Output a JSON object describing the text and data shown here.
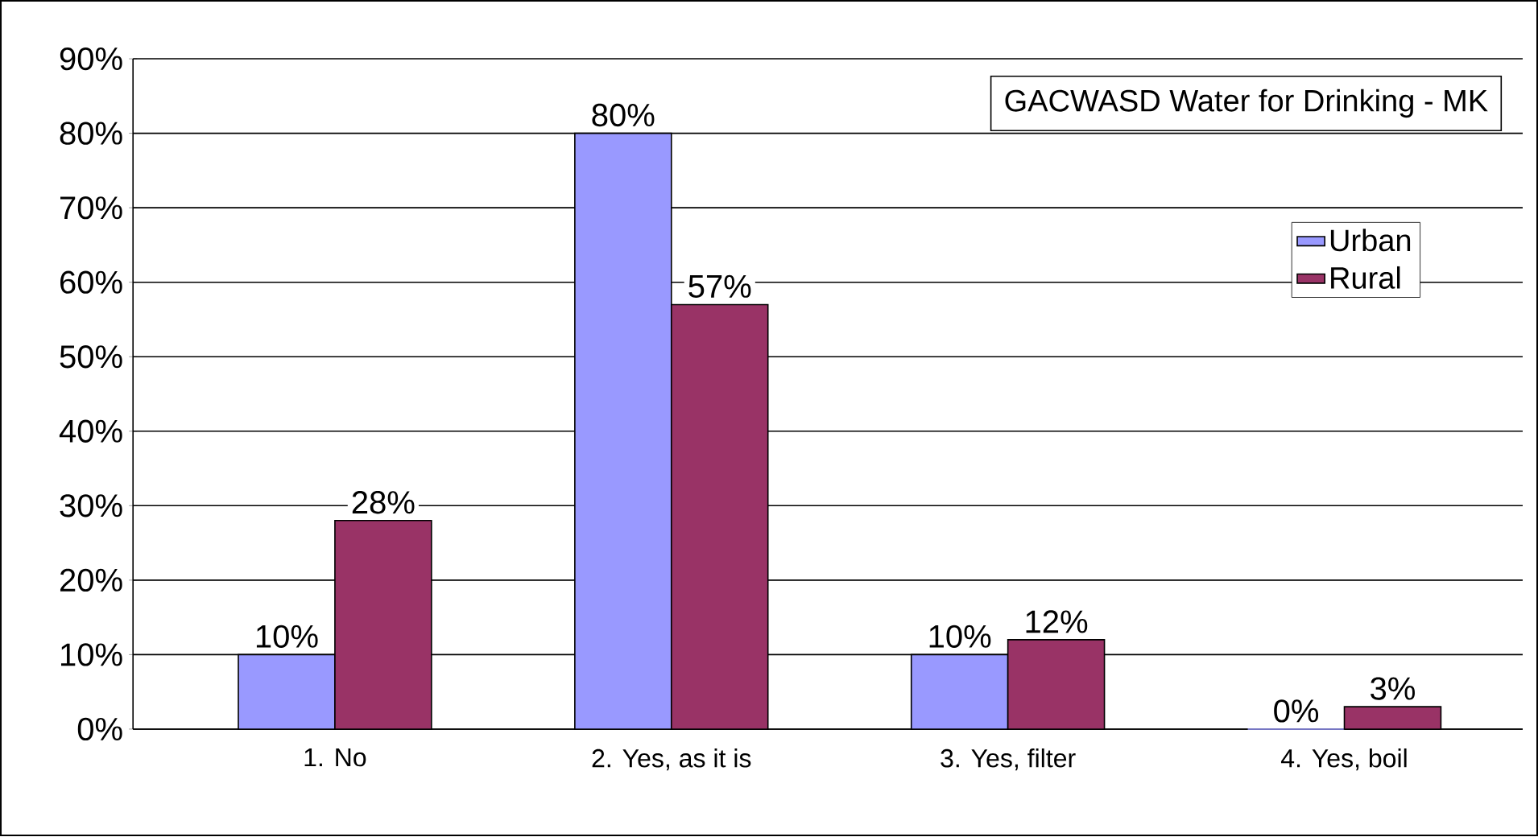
{
  "chart_data": {
    "type": "bar",
    "title": "GACWASD Water for Drinking - MK",
    "categories": [
      "1. No",
      "2. Yes, as it is",
      "3. Yes, filter",
      "4. Yes, boil"
    ],
    "series": [
      {
        "name": "Urban",
        "color": "#9999ff",
        "values": [
          10,
          80,
          10,
          0
        ],
        "value_labels": [
          "10%",
          "80%",
          "10%",
          "0%"
        ]
      },
      {
        "name": "Rural",
        "color": "#993366",
        "values": [
          28,
          57,
          12,
          3
        ],
        "value_labels": [
          "28%",
          "57%",
          "12%",
          "3%"
        ]
      }
    ],
    "ylim": [
      0,
      90
    ],
    "yticks": [
      {
        "value": 0,
        "label": "0%"
      },
      {
        "value": 10,
        "label": "10%"
      },
      {
        "value": 20,
        "label": "20%"
      },
      {
        "value": 30,
        "label": "30%"
      },
      {
        "value": 40,
        "label": "40%"
      },
      {
        "value": 50,
        "label": "50%"
      },
      {
        "value": 60,
        "label": "60%"
      },
      {
        "value": 70,
        "label": "70%"
      },
      {
        "value": 80,
        "label": "80%"
      },
      {
        "value": 90,
        "label": "90%"
      }
    ],
    "grid": "y",
    "legend": "right"
  }
}
